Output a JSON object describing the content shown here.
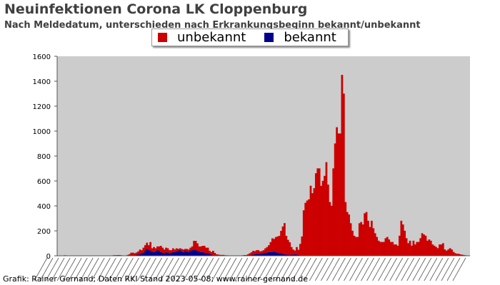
{
  "header": {
    "title": "Neuinfektionen Corona LK Cloppenburg",
    "subtitle": "Nach Meldedatum, unterschieden nach Erkrankungsbeginn bekannt/unbekannt"
  },
  "legend": {
    "items": [
      {
        "label": "unbekannt",
        "color": "#cc0000"
      },
      {
        "label": "bekannt",
        "color": "#00008b"
      }
    ],
    "placement": "top-center"
  },
  "footer": {
    "credit": "Grafik: Rainer Gernand; Daten RKI Stand 2023-05-08; www.rainer-gernand.de"
  },
  "chart_data": {
    "type": "bar",
    "stacked": true,
    "x_description": "Meldedatum (daily, from early 2020 to 2023); tick labels are illegible overlapping dates",
    "ylim": [
      0,
      1600
    ],
    "yticks": [
      0,
      200,
      400,
      600,
      800,
      1000,
      1200,
      1400,
      1600
    ],
    "grid": false,
    "background": "#cccccc",
    "series": [
      {
        "name": "unbekannt",
        "color": "#cc0000",
        "values": [
          0,
          0,
          0,
          0,
          0,
          0,
          0,
          0,
          0,
          0,
          0,
          0,
          0,
          0,
          0,
          0,
          0,
          0,
          0,
          0,
          0,
          0,
          0,
          0,
          0,
          0,
          0,
          0,
          0,
          0,
          2,
          3,
          5,
          5,
          6,
          6,
          5,
          3,
          2,
          2,
          5,
          10,
          20,
          20,
          15,
          18,
          25,
          35,
          25,
          40,
          45,
          50,
          35,
          70,
          25,
          40,
          25,
          30,
          35,
          50,
          40,
          30,
          35,
          35,
          25,
          20,
          30,
          20,
          25,
          15,
          15,
          20,
          20,
          15,
          20,
          20,
          25,
          30,
          70,
          75,
          60,
          40,
          45,
          50,
          55,
          45,
          45,
          25,
          20,
          35,
          20,
          10,
          8,
          5,
          5,
          5,
          3,
          3,
          2,
          2,
          2,
          2,
          2,
          2,
          2,
          2,
          3,
          5,
          5,
          10,
          15,
          20,
          30,
          25,
          30,
          30,
          20,
          20,
          25,
          35,
          45,
          55,
          80,
          110,
          100,
          120,
          130,
          140,
          180,
          220,
          250,
          150,
          120,
          100,
          60,
          40,
          30,
          60,
          40,
          90,
          150,
          360,
          420,
          440,
          450,
          560,
          500,
          540,
          660,
          700,
          700,
          560,
          600,
          640,
          750,
          570,
          430,
          400,
          700,
          900,
          1030,
          980,
          980,
          1450,
          1300,
          430,
          350,
          330,
          260,
          200,
          160,
          150,
          150,
          260,
          270,
          250,
          340,
          350,
          280,
          230,
          280,
          220,
          180,
          150,
          120,
          110,
          110,
          110,
          140,
          150,
          130,
          110,
          110,
          90,
          90,
          80,
          160,
          280,
          250,
          200,
          140,
          100,
          120,
          80,
          120,
          90,
          110,
          110,
          140,
          180,
          170,
          160,
          120,
          130,
          120,
          90,
          80,
          70,
          60,
          90,
          90,
          100,
          50,
          40,
          50,
          60,
          50,
          30,
          20,
          15,
          15,
          10,
          8,
          5,
          3,
          2,
          1
        ]
      },
      {
        "name": "bekannt",
        "color": "#00008b",
        "values": [
          0,
          0,
          0,
          0,
          4,
          3,
          2,
          2,
          3,
          2,
          2,
          0,
          0,
          0,
          0,
          0,
          0,
          0,
          0,
          0,
          2,
          0,
          0,
          0,
          0,
          0,
          0,
          0,
          0,
          0,
          0,
          0,
          0,
          0,
          0,
          0,
          0,
          0,
          0,
          0,
          2,
          3,
          5,
          5,
          5,
          8,
          10,
          15,
          20,
          25,
          40,
          55,
          50,
          40,
          35,
          30,
          35,
          45,
          40,
          30,
          25,
          20,
          30,
          25,
          20,
          25,
          30,
          30,
          35,
          40,
          45,
          35,
          30,
          40,
          35,
          30,
          40,
          45,
          50,
          45,
          40,
          35,
          30,
          30,
          25,
          20,
          20,
          15,
          10,
          5,
          3,
          2,
          2,
          2,
          2,
          2,
          1,
          1,
          1,
          1,
          1,
          1,
          1,
          1,
          1,
          1,
          1,
          1,
          1,
          2,
          5,
          8,
          10,
          12,
          15,
          15,
          15,
          18,
          20,
          25,
          25,
          30,
          30,
          30,
          35,
          30,
          25,
          20,
          20,
          15,
          12,
          10,
          8,
          8,
          10,
          10,
          12,
          10,
          8,
          5,
          5,
          5,
          5,
          3,
          3,
          2,
          2,
          2,
          2,
          1,
          1,
          1,
          1,
          1,
          1,
          1,
          1,
          1,
          1,
          1,
          1,
          1,
          1,
          1,
          1,
          1,
          1,
          1,
          1,
          1,
          1,
          1,
          1,
          1,
          1,
          1,
          1,
          1,
          1,
          1,
          1,
          1,
          1,
          1,
          1,
          1,
          1,
          1,
          1,
          1,
          1,
          1,
          1,
          1,
          1,
          1,
          1,
          1,
          1,
          1,
          1,
          1,
          1,
          1,
          1,
          1,
          1,
          1,
          1,
          1,
          1,
          1,
          1,
          1,
          1,
          1,
          1,
          1,
          1,
          1,
          1,
          1,
          1,
          1,
          1,
          1,
          1,
          1,
          1,
          1,
          1,
          1,
          1,
          1,
          1,
          1,
          1,
          1,
          1,
          1,
          1,
          1,
          1,
          1,
          1,
          1,
          1,
          1,
          1,
          1,
          1,
          1,
          1,
          1,
          1,
          1,
          1,
          1
        ]
      }
    ]
  }
}
